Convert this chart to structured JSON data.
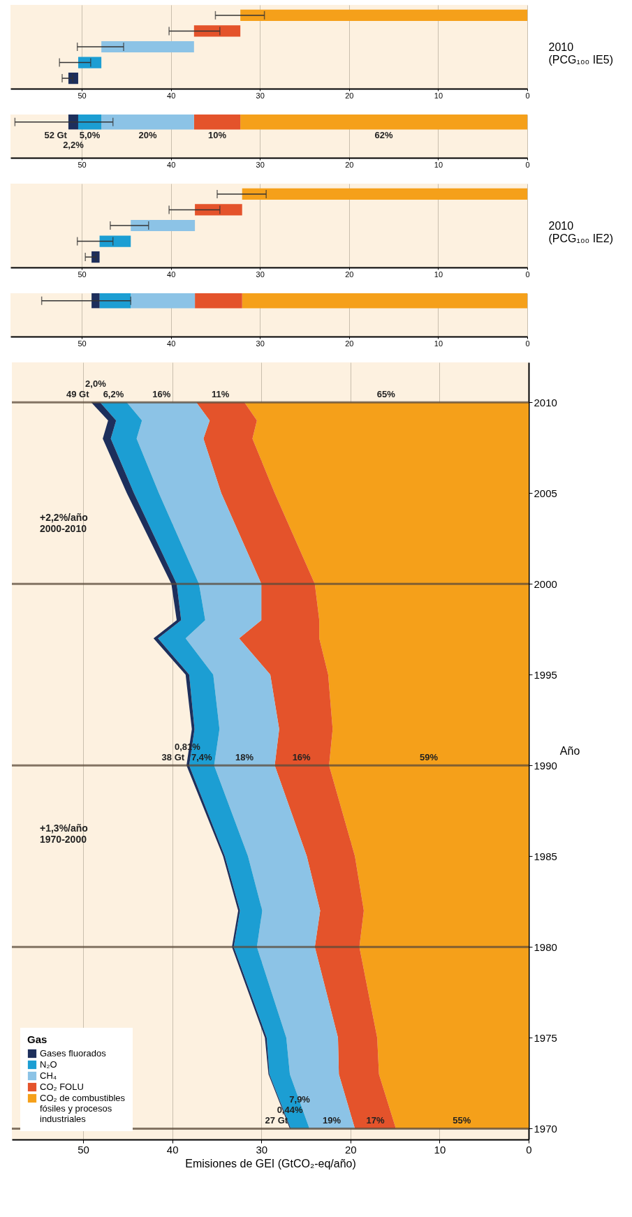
{
  "chart_data": [
    {
      "type": "bar",
      "orientation": "horizontal",
      "ylabel": "2010\n(PCG₁₀₀ IE5)",
      "categories": [
        null,
        null,
        null,
        null,
        null
      ],
      "base": [
        0,
        32.2,
        37.4,
        47.8,
        50.4
      ],
      "values": [
        32.2,
        5.2,
        10.4,
        2.6,
        1.1
      ],
      "colors": [
        "#f5a01a",
        "#e4532b",
        "#8cc3e6",
        "#1c9ed3",
        "#1d2f5c"
      ],
      "errors": [
        [
          29.5,
          35
        ],
        [
          34.5,
          40.2
        ],
        [
          45.3,
          50.5
        ],
        [
          49,
          52.5
        ],
        [
          51,
          52.2
        ]
      ],
      "xlim": [
        58,
        0
      ],
      "xticks": [
        0,
        10,
        20,
        30,
        40,
        50
      ],
      "grid": "x"
    },
    {
      "type": "bar",
      "stacked": true,
      "orientation": "horizontal",
      "categories": [
        null
      ],
      "series": [
        {
          "color": "#f5a01a",
          "values": [
            32.2
          ]
        },
        {
          "color": "#e4532b",
          "values": [
            5.2
          ]
        },
        {
          "color": "#8cc3e6",
          "values": [
            10.4
          ]
        },
        {
          "color": "#1c9ed3",
          "values": [
            2.6
          ]
        },
        {
          "color": "#1d2f5c",
          "values": [
            1.1
          ],
          "errors": [
            [
              46.5,
              57.5
            ]
          ]
        }
      ],
      "totals": [
        "52 Gt"
      ],
      "xlim": [
        58,
        0
      ],
      "xticks": [
        0,
        10,
        20,
        30,
        40,
        50
      ],
      "grid": "x",
      "annotations": [
        "2,2%",
        "5,0%",
        "20%",
        "10%",
        "62%"
      ]
    },
    {
      "type": "bar",
      "orientation": "horizontal",
      "ylabel": "2010\n(PCG₁₀₀ IE2)",
      "categories": [
        null,
        null,
        null,
        null,
        null
      ],
      "base": [
        0,
        32,
        37.3,
        44.5,
        48.0
      ],
      "values": [
        32,
        5.3,
        7.2,
        3.5,
        0.9
      ],
      "colors": [
        "#f5a01a",
        "#e4532b",
        "#8cc3e6",
        "#1c9ed3",
        "#1d2f5c"
      ],
      "errors": [
        [
          29.3,
          34.8
        ],
        [
          34.5,
          40.2
        ],
        [
          42.5,
          46.8
        ],
        [
          46.5,
          50.5
        ],
        [
          48.4,
          49.6
        ]
      ],
      "xlim": [
        58,
        0
      ],
      "xticks": [
        0,
        10,
        20,
        30,
        40,
        50
      ],
      "grid": "x"
    },
    {
      "type": "bar",
      "stacked": true,
      "orientation": "horizontal",
      "categories": [
        null
      ],
      "series": [
        {
          "color": "#f5a01a",
          "values": [
            32
          ]
        },
        {
          "color": "#e4532b",
          "values": [
            5.3
          ]
        },
        {
          "color": "#8cc3e6",
          "values": [
            7.2
          ]
        },
        {
          "color": "#1c9ed3",
          "values": [
            3.5
          ]
        },
        {
          "color": "#1d2f5c",
          "values": [
            0.9
          ],
          "errors": [
            [
              44.5,
              54.5
            ]
          ]
        }
      ],
      "xlim": [
        58,
        0
      ],
      "xticks": [
        0,
        10,
        20,
        30,
        40,
        50
      ],
      "grid": "x"
    },
    {
      "type": "area",
      "stacked": true,
      "orientation": "horizontal",
      "xlabel": "Emisiones de GEI (GtCO₂-eq/año)",
      "ylabel": "Año",
      "x": [
        1970,
        1973,
        1975,
        1980,
        1982,
        1985,
        1990,
        1992,
        1995,
        1997,
        1998,
        2000,
        2005,
        2008,
        2009,
        2010
      ],
      "series": [
        {
          "name": "CO₂ de combustibles fósiles y procesos industriales",
          "color": "#f5a01a",
          "values": [
            14.9,
            16.8,
            17.0,
            19.0,
            18.5,
            19.5,
            22.4,
            22.0,
            22.5,
            23.5,
            23.5,
            24.0,
            28.5,
            31.0,
            30.5,
            31.9
          ]
        },
        {
          "name": "CO₂ FOLU",
          "color": "#e4532b",
          "values": [
            4.6,
            4.5,
            4.4,
            5.0,
            4.9,
            5.4,
            6.1,
            6.0,
            6.5,
            9.0,
            6.5,
            6.0,
            6.0,
            5.5,
            5.3,
            5.4
          ]
        },
        {
          "name": "CH₄",
          "color": "#8cc3e6",
          "values": [
            5.1,
            5.5,
            5.8,
            6.5,
            6.5,
            6.6,
            6.8,
            6.7,
            6.4,
            6.0,
            6.3,
            7.0,
            7.0,
            7.5,
            7.6,
            7.8
          ]
        },
        {
          "name": "N₂O",
          "color": "#1c9ed3",
          "values": [
            2.1,
            2.3,
            2.2,
            2.6,
            2.5,
            2.6,
            2.8,
            2.8,
            2.7,
            3.1,
            2.7,
            2.5,
            2.8,
            2.9,
            2.9,
            3.0
          ]
        },
        {
          "name": "Gases fluorados",
          "color": "#1d2f5c",
          "values": [
            0.1,
            0.1,
            0.2,
            0.2,
            0.2,
            0.2,
            0.3,
            0.3,
            0.4,
            0.5,
            0.5,
            0.6,
            0.8,
            0.9,
            0.9,
            1.0
          ]
        }
      ],
      "totals": [
        "27 Gt",
        null,
        null,
        null,
        null,
        null,
        "38 Gt",
        null,
        null,
        null,
        null,
        null,
        null,
        null,
        null,
        "49 Gt"
      ],
      "xlim": [
        58,
        0
      ],
      "xticks": [
        0,
        10,
        20,
        30,
        40,
        50
      ],
      "ylim": [
        1969.4,
        2012.2
      ],
      "yticks": [
        1970,
        1975,
        1980,
        1985,
        1990,
        1995,
        2000,
        2005,
        2010
      ],
      "grid": "x",
      "legend": "bottom left",
      "legend_title": "Gas",
      "ref_lines": [
        {
          "axis": "y",
          "value": 1970
        },
        {
          "axis": "y",
          "value": 1980
        },
        {
          "axis": "y",
          "value": 1990
        },
        {
          "axis": "y",
          "value": 2000
        },
        {
          "axis": "y",
          "value": 2010
        }
      ],
      "annotations": [
        "+2,2%/año\n2000-2010",
        "+1,3%/año\n1970-2000",
        {
          "text": "2,0%",
          "x": 48.6,
          "y": 2010
        },
        {
          "text": "6,2%",
          "x": 46.6,
          "y": 2010
        },
        {
          "text": "16%",
          "x": 41.2,
          "y": 2010
        },
        {
          "text": "11%",
          "x": 34.6,
          "y": 2010
        },
        {
          "text": "65%",
          "x": 16,
          "y": 2010
        },
        {
          "text": "0,81%",
          "x": 38.3,
          "y": 1990
        },
        {
          "text": "7,4%",
          "x": 36.7,
          "y": 1990
        },
        {
          "text": "18%",
          "x": 31.9,
          "y": 1990
        },
        {
          "text": "16%",
          "x": 25.5,
          "y": 1990
        },
        {
          "text": "59%",
          "x": 11.2,
          "y": 1990
        },
        {
          "text": "0,44%",
          "x": 26.8,
          "y": 1970
        },
        {
          "text": "7,9%",
          "x": 25.7,
          "y": 1970
        },
        {
          "text": "19%",
          "x": 22.1,
          "y": 1970
        },
        {
          "text": "17%",
          "x": 17.2,
          "y": 1970
        },
        {
          "text": "55%",
          "x": 7.5,
          "y": 1970
        }
      ]
    }
  ]
}
